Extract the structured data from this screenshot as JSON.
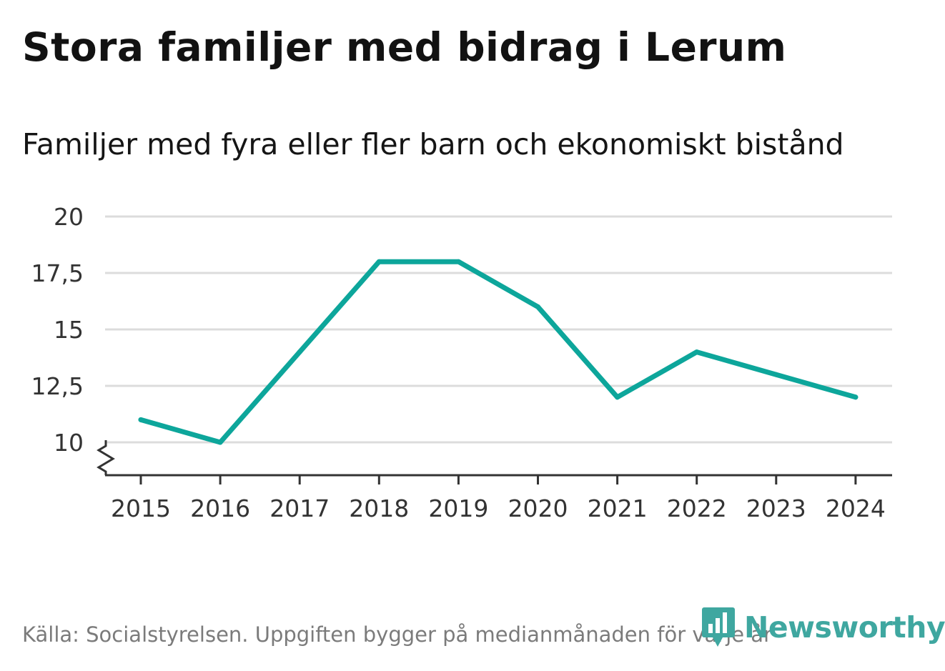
{
  "title": "Stora familjer med bidrag i Lerum",
  "subtitle": "Familjer med fyra eller fler barn och ekonomiskt bistånd",
  "source": "Källa: Socialstyrelsen. Uppgiften bygger på medianmånaden för varje år",
  "brand": "Newsworthy",
  "colors": {
    "line": "#0da69b",
    "grid": "#dcdcdc",
    "axis": "#333333",
    "brand": "#3fa7a0"
  },
  "chart_data": {
    "type": "line",
    "title": "Stora familjer med bidrag i Lerum",
    "subtitle": "Familjer med fyra eller fler barn och ekonomiskt bistånd",
    "xlabel": "",
    "ylabel": "",
    "x": [
      "2015",
      "2016",
      "2017",
      "2018",
      "2019",
      "2020",
      "2021",
      "2022",
      "2023",
      "2024"
    ],
    "series": [
      {
        "name": "Familjer",
        "values": [
          11,
          10,
          14,
          18,
          18,
          16,
          12,
          14,
          13,
          12
        ]
      }
    ],
    "ylim": [
      10,
      20
    ],
    "yticks": [
      10,
      12.5,
      15,
      17.5,
      20
    ],
    "ytick_labels": [
      "10",
      "12,5",
      "15",
      "17,5",
      "20"
    ],
    "grid": true,
    "axis_break": true
  }
}
